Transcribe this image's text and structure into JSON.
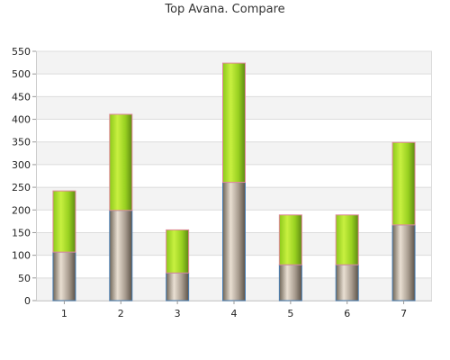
{
  "chart_data": {
    "type": "bar",
    "stacked": true,
    "title": "Top Avana. Compare",
    "xlabel": "",
    "ylabel": "",
    "categories": [
      "1",
      "2",
      "3",
      "4",
      "5",
      "6",
      "7"
    ],
    "series": [
      {
        "values": [
          107,
          199,
          61,
          261,
          79,
          79,
          167
        ],
        "color": "#a69a8c"
      },
      {
        "values": [
          135,
          212,
          95,
          263,
          110,
          110,
          182
        ],
        "color": "#9fd41f"
      }
    ],
    "ylim": [
      0,
      550
    ],
    "yticks": [
      0,
      50,
      100,
      150,
      200,
      250,
      300,
      350,
      400,
      450,
      500,
      550
    ],
    "grid": true,
    "band_colors": [
      "#f3f3f3",
      "#ffffff"
    ],
    "legend": "none"
  }
}
